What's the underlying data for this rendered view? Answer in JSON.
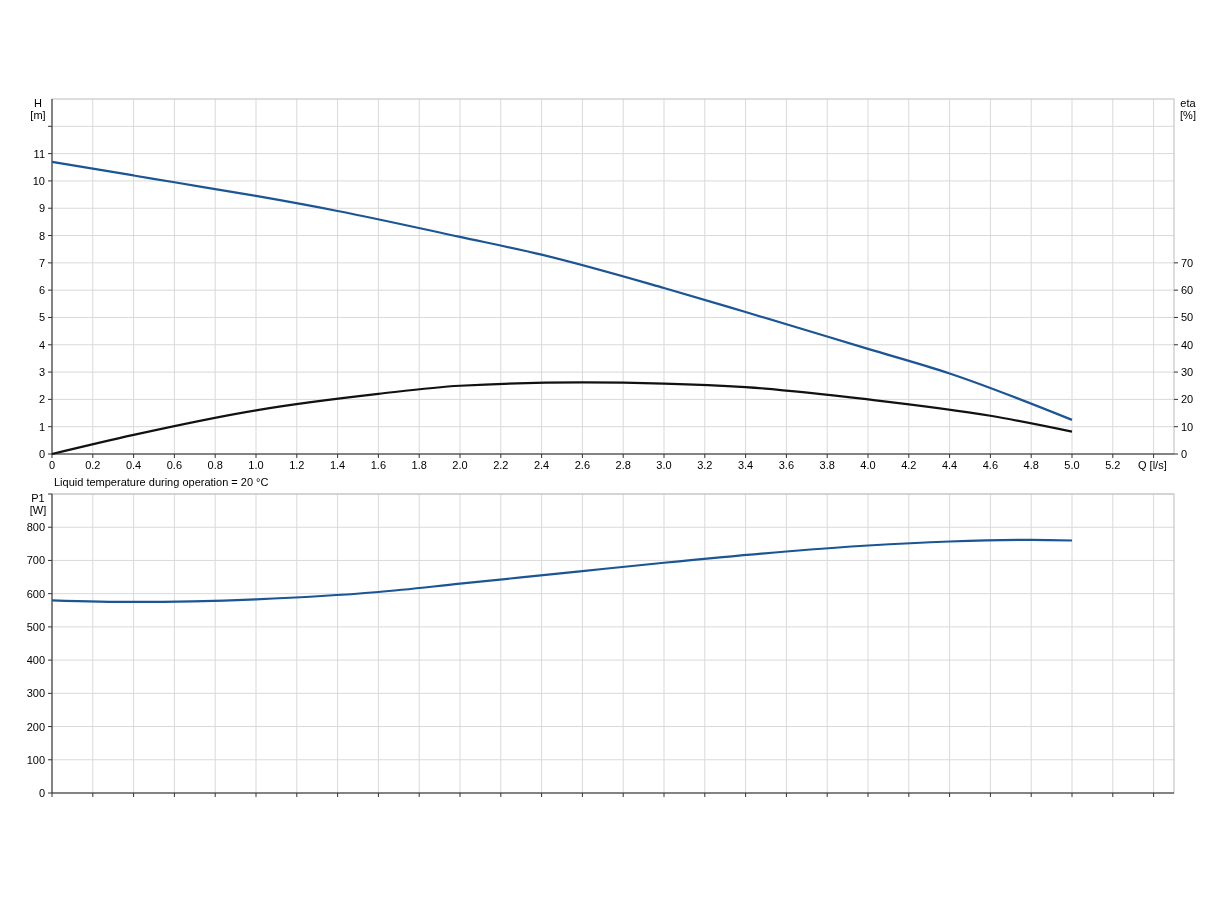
{
  "chart_data": [
    {
      "type": "line",
      "xlabel": "Q [l/s]",
      "ylabel": "H\n[m]",
      "y2label": "eta\n[%]",
      "xlim": [
        0,
        5.5
      ],
      "xticks": [
        0,
        0.2,
        0.4,
        0.6,
        0.8,
        {
          "value": 1,
          "label": "1.0"
        },
        1.2,
        1.4,
        1.6,
        1.8,
        {
          "value": 2,
          "label": "2.0"
        },
        2.2,
        2.4,
        2.6,
        2.8,
        {
          "value": 3,
          "label": "3.0"
        },
        3.2,
        3.4,
        3.6,
        3.8,
        {
          "value": 4,
          "label": "4.0"
        },
        4.2,
        4.4,
        4.6,
        4.8,
        {
          "value": 5,
          "label": "5.0"
        },
        5.2,
        {
          "value": 5.4,
          "label": null
        }
      ],
      "ylim": [
        0,
        13
      ],
      "yticks": [
        0,
        1,
        2,
        3,
        4,
        5,
        6,
        7,
        8,
        9,
        10,
        11,
        {
          "value": 12,
          "label": null
        }
      ],
      "y2lim": [
        0,
        130
      ],
      "y2ticks": [
        0,
        10,
        20,
        30,
        40,
        50,
        60,
        70
      ],
      "grid": true,
      "annotations": [
        "Liquid temperature during operation = 20 °C"
      ],
      "series": [
        {
          "color": "#1b5594",
          "x": [
            0,
            0.2,
            0.4,
            0.6,
            1.0,
            1.4,
            2.0,
            2.4,
            3.0,
            3.4,
            4.0,
            4.4,
            5.0
          ],
          "values": [
            10.7,
            10.45,
            10.2,
            9.95,
            9.45,
            8.9,
            7.95,
            7.3,
            6.08,
            5.2,
            3.85,
            2.95,
            1.25
          ]
        },
        {
          "color": "#111111",
          "axis": "y2",
          "x": [
            0,
            0.4,
            1.0,
            1.6,
            2.0,
            2.6,
            3.0,
            3.4,
            4.0,
            4.6,
            5.0
          ],
          "values": [
            0,
            7,
            16,
            22,
            25,
            26.2,
            25.8,
            24.5,
            20,
            14,
            8.2
          ]
        }
      ]
    },
    {
      "type": "line",
      "ylabel": "P1\n[W]",
      "xlim": [
        0,
        5.5
      ],
      "xticks": [
        0,
        0.2,
        0.4,
        0.6,
        0.8,
        1.0,
        1.2,
        1.4,
        1.6,
        1.8,
        2.0,
        2.2,
        2.4,
        2.6,
        2.8,
        3.0,
        3.2,
        3.4,
        3.6,
        3.8,
        4.0,
        4.2,
        4.4,
        4.6,
        4.8,
        5.0,
        5.2,
        5.4
      ],
      "ylim": [
        0,
        900
      ],
      "yticks": [
        0,
        100,
        200,
        300,
        400,
        500,
        600,
        700,
        800,
        {
          "value": 900,
          "label": null
        }
      ],
      "grid": true,
      "tick_labels": "y",
      "series": [
        {
          "color": "#1b5594",
          "x": [
            0,
            0.4,
            1.0,
            1.6,
            2.0,
            2.6,
            3.0,
            3.6,
            4.0,
            4.4,
            4.8,
            5.0
          ],
          "values": [
            580,
            575,
            583,
            605,
            630,
            668,
            693,
            727,
            745,
            757,
            762,
            760
          ]
        }
      ]
    }
  ]
}
